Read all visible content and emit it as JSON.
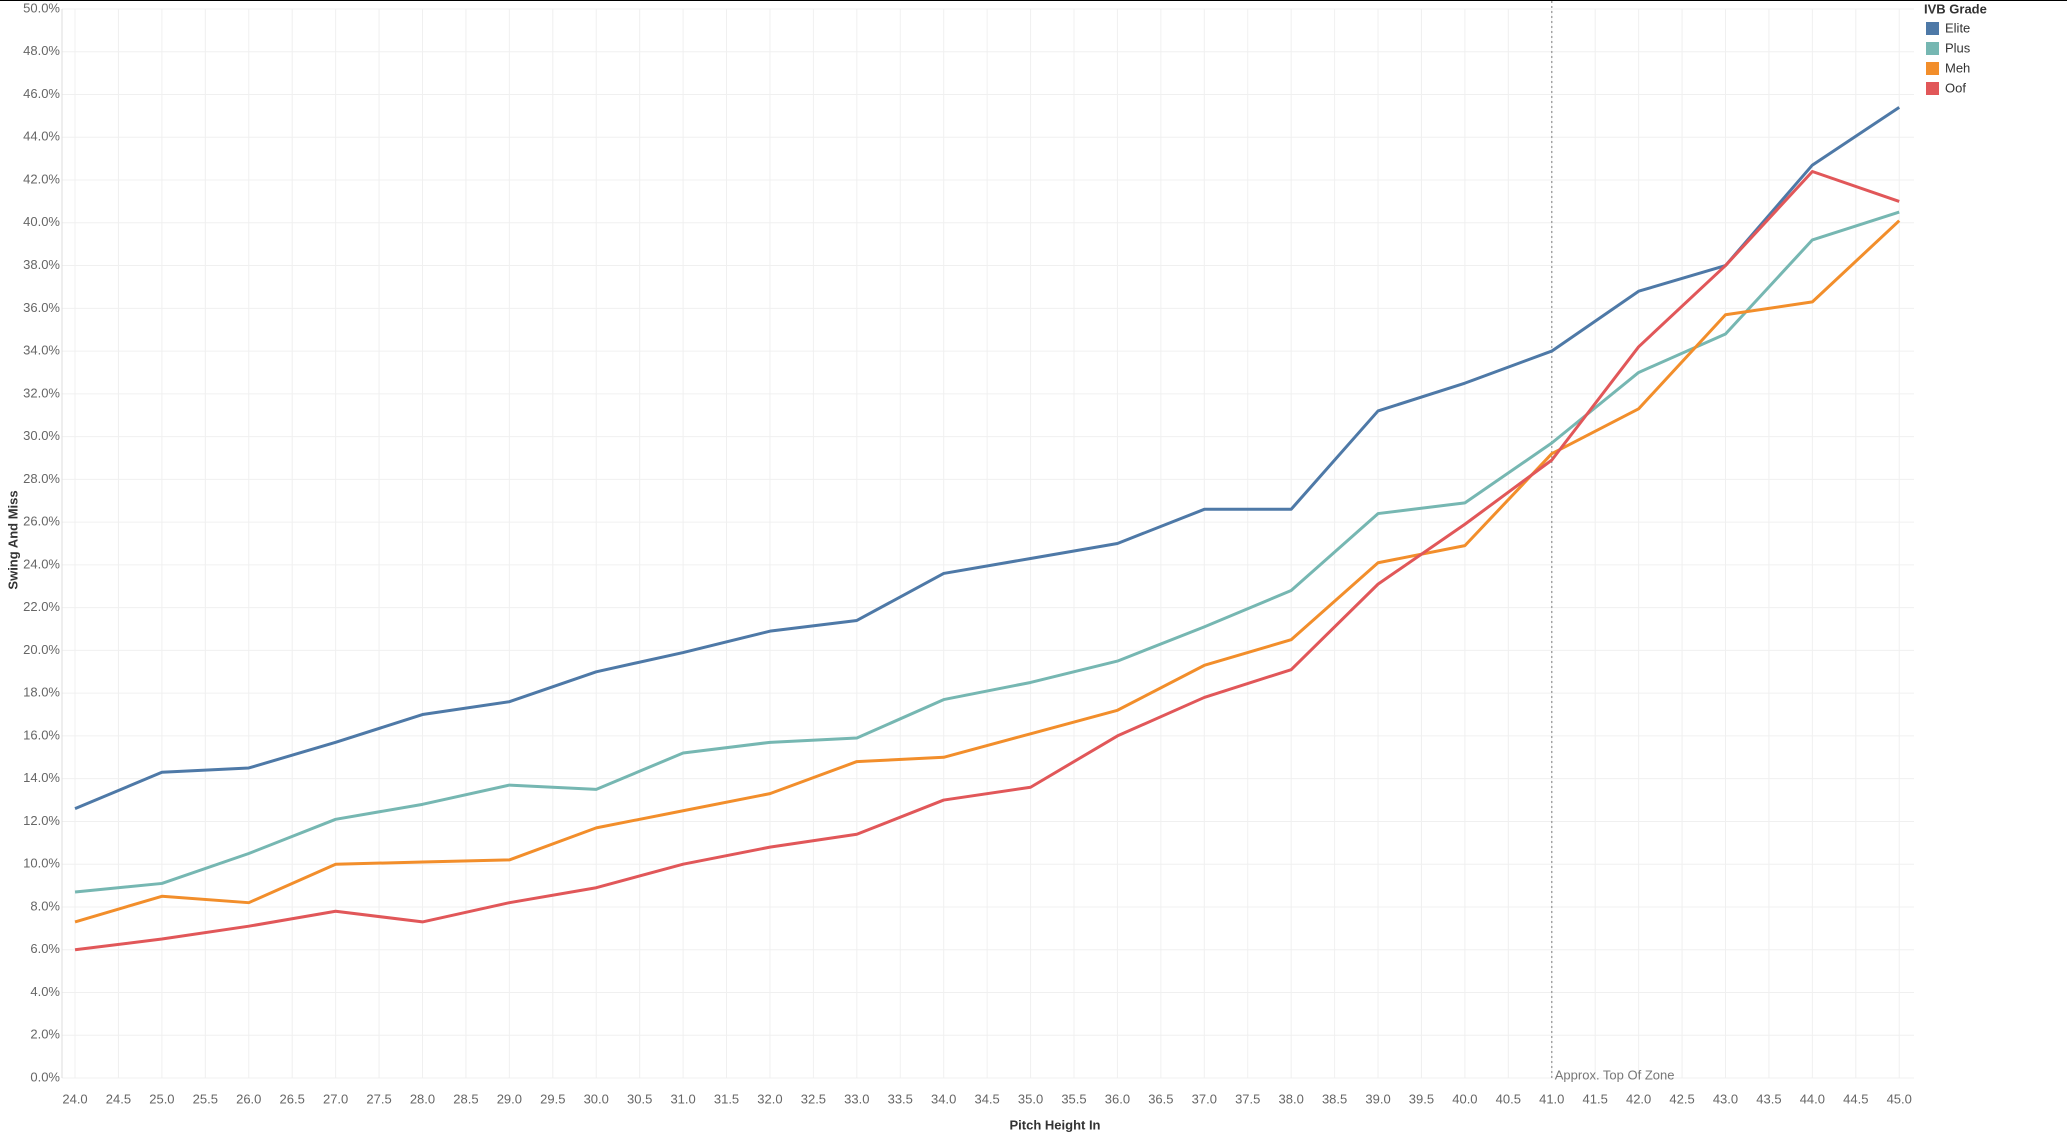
{
  "chart_data": {
    "type": "line",
    "x_label": "Pitch Height In",
    "y_label": "Swing And Miss",
    "legend_title": "IVB Grade",
    "legend_position": "top-right",
    "grid": true,
    "x": [
      24,
      25,
      26,
      27,
      28,
      29,
      30,
      31,
      32,
      33,
      34,
      35,
      36,
      37,
      38,
      39,
      40,
      41,
      42,
      43,
      44,
      45
    ],
    "series": [
      {
        "name": "Elite",
        "color": "#4e79a7",
        "values": [
          12.6,
          14.3,
          14.5,
          15.7,
          17.0,
          17.6,
          19.0,
          19.9,
          20.9,
          21.4,
          23.6,
          24.3,
          25.0,
          26.6,
          26.6,
          31.2,
          32.5,
          34.0,
          36.8,
          38.0,
          42.7,
          45.4
        ]
      },
      {
        "name": "Plus",
        "color": "#76b7b2",
        "values": [
          8.7,
          9.1,
          10.5,
          12.1,
          12.8,
          13.7,
          13.5,
          15.2,
          15.7,
          15.9,
          17.7,
          18.5,
          19.5,
          21.1,
          22.8,
          26.4,
          26.9,
          29.7,
          33.0,
          34.8,
          39.2,
          40.5
        ]
      },
      {
        "name": "Meh",
        "color": "#f28e2b",
        "values": [
          7.3,
          8.5,
          8.2,
          10.0,
          10.1,
          10.2,
          11.7,
          12.5,
          13.3,
          14.8,
          15.0,
          16.1,
          17.2,
          19.3,
          20.5,
          24.1,
          24.9,
          29.2,
          31.3,
          35.7,
          36.3,
          40.1
        ]
      },
      {
        "name": "Oof",
        "color": "#e15759",
        "values": [
          6.0,
          6.5,
          7.1,
          7.8,
          7.3,
          8.2,
          8.9,
          10.0,
          10.8,
          11.4,
          13.0,
          13.6,
          16.0,
          17.8,
          19.1,
          23.1,
          25.9,
          28.9,
          34.2,
          38.0,
          42.4,
          41.0
        ]
      }
    ],
    "reference_line": {
      "x": 41,
      "label": "Approx. Top Of Zone"
    },
    "xlim": [
      23.85,
      45.17
    ],
    "ylim": [
      0,
      50
    ],
    "xticks": [
      {
        "value": 24,
        "label": "24.0"
      },
      {
        "value": 24.5,
        "label": "24.5"
      },
      {
        "value": 25,
        "label": "25.0"
      },
      {
        "value": 25.5,
        "label": "25.5"
      },
      {
        "value": 26,
        "label": "26.0"
      },
      {
        "value": 26.5,
        "label": "26.5"
      },
      {
        "value": 27,
        "label": "27.0"
      },
      {
        "value": 27.5,
        "label": "27.5"
      },
      {
        "value": 28,
        "label": "28.0"
      },
      {
        "value": 28.5,
        "label": "28.5"
      },
      {
        "value": 29,
        "label": "29.0"
      },
      {
        "value": 29.5,
        "label": "29.5"
      },
      {
        "value": 30,
        "label": "30.0"
      },
      {
        "value": 30.5,
        "label": "30.5"
      },
      {
        "value": 31,
        "label": "31.0"
      },
      {
        "value": 31.5,
        "label": "31.5"
      },
      {
        "value": 32,
        "label": "32.0"
      },
      {
        "value": 32.5,
        "label": "32.5"
      },
      {
        "value": 33,
        "label": "33.0"
      },
      {
        "value": 33.5,
        "label": "33.5"
      },
      {
        "value": 34,
        "label": "34.0"
      },
      {
        "value": 34.5,
        "label": "34.5"
      },
      {
        "value": 35,
        "label": "35.0"
      },
      {
        "value": 35.5,
        "label": "35.5"
      },
      {
        "value": 36,
        "label": "36.0"
      },
      {
        "value": 36.5,
        "label": "36.5"
      },
      {
        "value": 37,
        "label": "37.0"
      },
      {
        "value": 37.5,
        "label": "37.5"
      },
      {
        "value": 38,
        "label": "38.0"
      },
      {
        "value": 38.5,
        "label": "38.5"
      },
      {
        "value": 39,
        "label": "39.0"
      },
      {
        "value": 39.5,
        "label": "39.5"
      },
      {
        "value": 40,
        "label": "40.0"
      },
      {
        "value": 40.5,
        "label": "40.5"
      },
      {
        "value": 41,
        "label": "41.0"
      },
      {
        "value": 41.5,
        "label": "41.5"
      },
      {
        "value": 42,
        "label": "42.0"
      },
      {
        "value": 42.5,
        "label": "42.5"
      },
      {
        "value": 43,
        "label": "43.0"
      },
      {
        "value": 43.5,
        "label": "43.5"
      },
      {
        "value": 44,
        "label": "44.0"
      },
      {
        "value": 44.5,
        "label": "44.5"
      },
      {
        "value": 45,
        "label": "45.0"
      }
    ],
    "yticks": [
      {
        "value": 0,
        "label": "0.0%"
      },
      {
        "value": 2,
        "label": "2.0%"
      },
      {
        "value": 4,
        "label": "4.0%"
      },
      {
        "value": 6,
        "label": "6.0%"
      },
      {
        "value": 8,
        "label": "8.0%"
      },
      {
        "value": 10,
        "label": "10.0%"
      },
      {
        "value": 12,
        "label": "12.0%"
      },
      {
        "value": 14,
        "label": "14.0%"
      },
      {
        "value": 16,
        "label": "16.0%"
      },
      {
        "value": 18,
        "label": "18.0%"
      },
      {
        "value": 20,
        "label": "20.0%"
      },
      {
        "value": 22,
        "label": "22.0%"
      },
      {
        "value": 24,
        "label": "24.0%"
      },
      {
        "value": 26,
        "label": "26.0%"
      },
      {
        "value": 28,
        "label": "28.0%"
      },
      {
        "value": 30,
        "label": "30.0%"
      },
      {
        "value": 32,
        "label": "32.0%"
      },
      {
        "value": 34,
        "label": "34.0%"
      },
      {
        "value": 36,
        "label": "36.0%"
      },
      {
        "value": 38,
        "label": "38.0%"
      },
      {
        "value": 40,
        "label": "40.0%"
      },
      {
        "value": 42,
        "label": "42.0%"
      },
      {
        "value": 44,
        "label": "44.0%"
      },
      {
        "value": 46,
        "label": "46.0%"
      },
      {
        "value": 48,
        "label": "48.0%"
      },
      {
        "value": 50,
        "label": "50.0%"
      }
    ]
  }
}
